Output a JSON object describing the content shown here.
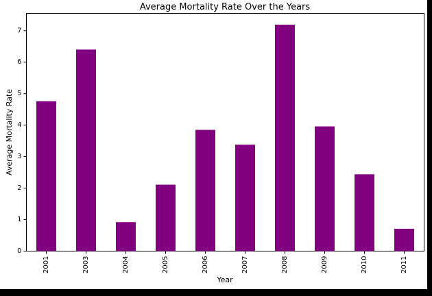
{
  "chart_data": {
    "type": "bar",
    "title": "Average Mortality Rate Over the Years",
    "xlabel": "Year",
    "ylabel": "Average Mortality Rate",
    "categories": [
      "2001",
      "2003",
      "2004",
      "2005",
      "2006",
      "2007",
      "2008",
      "2009",
      "2010",
      "2011"
    ],
    "values": [
      4.76,
      6.4,
      0.92,
      2.11,
      3.85,
      3.38,
      7.19,
      3.96,
      2.44,
      0.71
    ],
    "ylim": [
      0,
      7.55
    ],
    "yticks": [
      0,
      1,
      2,
      3,
      4,
      5,
      6,
      7
    ],
    "bar_color": "#800080",
    "grid": false,
    "legend": "none"
  }
}
